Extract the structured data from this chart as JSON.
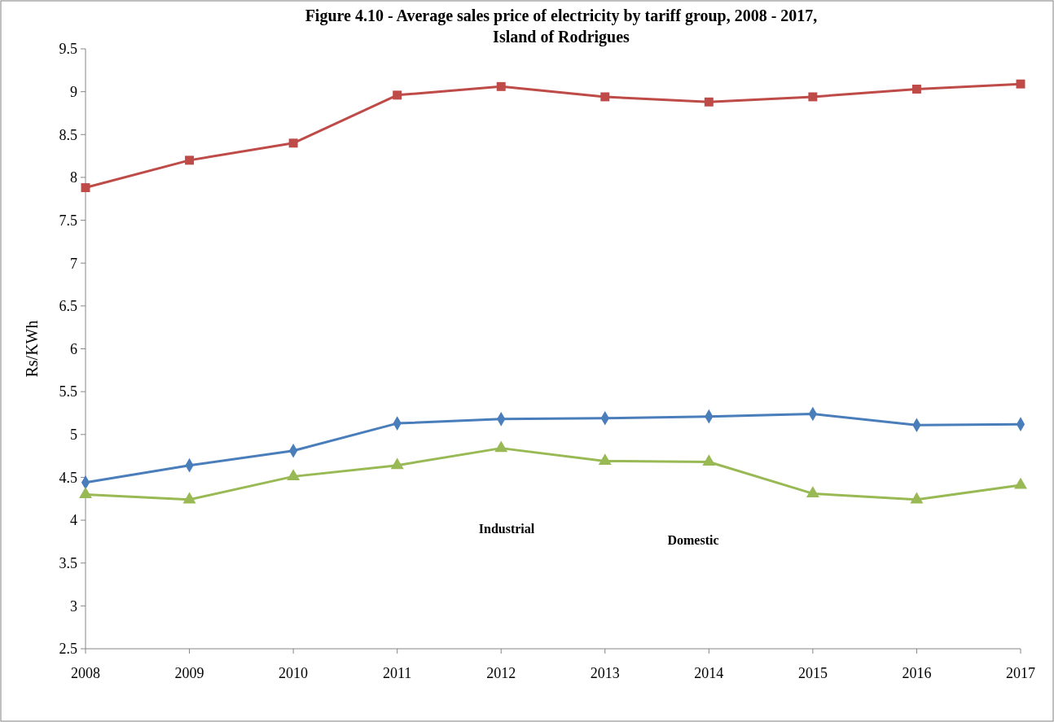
{
  "chart_data": {
    "type": "line",
    "title": "Figure 4.10 - Average sales price of electricity by tariff group, 2008 - 2017,\nIsland of Rodrigues",
    "ylabel": "Rs/KWh",
    "categories": [
      "2008",
      "2009",
      "2010",
      "2011",
      "2012",
      "2013",
      "2014",
      "2015",
      "2016",
      "2017"
    ],
    "series": [
      {
        "color": "#4a7ebb",
        "marker": "diamond",
        "values": [
          4.44,
          4.64,
          4.81,
          5.13,
          5.18,
          5.19,
          5.21,
          5.24,
          5.11,
          5.12
        ]
      },
      {
        "color": "#be4b48",
        "marker": "square",
        "values": [
          7.88,
          8.2,
          8.4,
          8.96,
          9.06,
          8.94,
          8.88,
          8.94,
          9.03,
          9.09
        ]
      },
      {
        "color": "#98b954",
        "marker": "triangle",
        "values": [
          4.3,
          4.24,
          4.51,
          4.64,
          4.84,
          4.69,
          4.68,
          4.31,
          4.24,
          4.41
        ]
      }
    ],
    "annotations": [
      "Industrial",
      "Domestic"
    ],
    "ylim": [
      2.5,
      9.5
    ],
    "yticks": [
      2.5,
      3,
      3.5,
      4,
      4.5,
      5,
      5.5,
      6,
      6.5,
      7,
      7.5,
      8,
      8.5,
      9,
      9.5
    ],
    "grid": false
  }
}
